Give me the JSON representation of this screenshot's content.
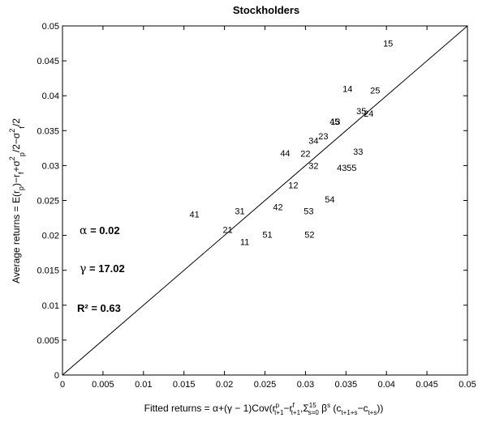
{
  "chart_data": {
    "type": "scatter",
    "title": "Stockholders",
    "ylabel": "Average returns = E(r_p)−r_f+σ_p^2/2−σ_f^2/2",
    "xlabel": "Fitted returns = α+(γ−1)Cov(r^p_{t+1}−r^f_{t+1}, Σ^{15}_{s=0} β^s (c_{t+1+s}−c_{t+s}))",
    "xlim": [
      0,
      0.05
    ],
    "ylim": [
      0,
      0.05
    ],
    "x_ticks": [
      "0",
      "0.005",
      "0.01",
      "0.015",
      "0.02",
      "0.025",
      "0.03",
      "0.035",
      "0.04",
      "0.045",
      "0.05"
    ],
    "y_ticks": [
      "0",
      "0.005",
      "0.01",
      "0.015",
      "0.02",
      "0.025",
      "0.03",
      "0.035",
      "0.04",
      "0.045",
      "0.05"
    ],
    "grid": false,
    "reference_line": {
      "type": "45-degree",
      "from": [
        0,
        0
      ],
      "to": [
        0.05,
        0.05
      ]
    },
    "points": [
      {
        "label": "15",
        "x": 0.0402,
        "y": 0.0475
      },
      {
        "label": "14",
        "x": 0.0352,
        "y": 0.041
      },
      {
        "label": "25",
        "x": 0.0386,
        "y": 0.0408
      },
      {
        "label": "35",
        "x": 0.0369,
        "y": 0.0378
      },
      {
        "label": "24",
        "x": 0.0378,
        "y": 0.0375
      },
      {
        "label": "45",
        "x": 0.0336,
        "y": 0.0363
      },
      {
        "label": "13",
        "x": 0.0337,
        "y": 0.0363
      },
      {
        "label": "34",
        "x": 0.031,
        "y": 0.0336
      },
      {
        "label": "23",
        "x": 0.0322,
        "y": 0.0342
      },
      {
        "label": "44",
        "x": 0.0275,
        "y": 0.0318
      },
      {
        "label": "22",
        "x": 0.03,
        "y": 0.0317
      },
      {
        "label": "33",
        "x": 0.0365,
        "y": 0.032
      },
      {
        "label": "32",
        "x": 0.031,
        "y": 0.03
      },
      {
        "label": "43",
        "x": 0.0345,
        "y": 0.0297
      },
      {
        "label": "55",
        "x": 0.0357,
        "y": 0.0297
      },
      {
        "label": "12",
        "x": 0.0285,
        "y": 0.0272
      },
      {
        "label": "54",
        "x": 0.033,
        "y": 0.0252
      },
      {
        "label": "42",
        "x": 0.0266,
        "y": 0.0241
      },
      {
        "label": "53",
        "x": 0.0304,
        "y": 0.0235
      },
      {
        "label": "31",
        "x": 0.0219,
        "y": 0.0235
      },
      {
        "label": "41",
        "x": 0.0163,
        "y": 0.023
      },
      {
        "label": "21",
        "x": 0.0204,
        "y": 0.0208
      },
      {
        "label": "51",
        "x": 0.0253,
        "y": 0.0201
      },
      {
        "label": "52",
        "x": 0.0305,
        "y": 0.0201
      },
      {
        "label": "11",
        "x": 0.0225,
        "y": 0.0191
      }
    ],
    "annotations": [
      {
        "symbol": "α",
        "text": " = 0.02"
      },
      {
        "symbol": "γ",
        "text": " = 17.02"
      },
      {
        "symbol": "R²",
        "text": " = 0.63"
      }
    ]
  }
}
